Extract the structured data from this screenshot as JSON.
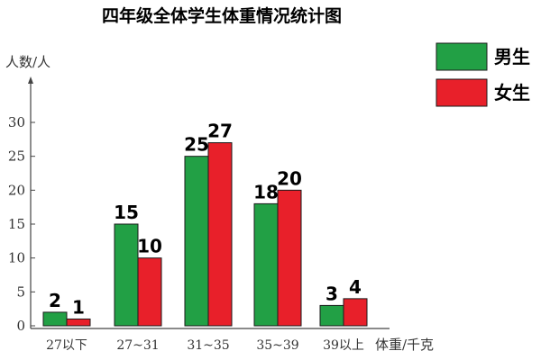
{
  "chart_data": {
    "type": "bar",
    "title": "四年级全体学生体重情况统计图",
    "ylabel": "人数/人",
    "xlabel": "体重/千克",
    "categories": [
      "27以下",
      "27~31",
      "31~35",
      "35~39",
      "39以上"
    ],
    "series": [
      {
        "name": "男生",
        "values": [
          2,
          15,
          25,
          18,
          3
        ],
        "color": "#22a045"
      },
      {
        "name": "女生",
        "values": [
          1,
          10,
          27,
          20,
          4
        ],
        "color": "#e8202a"
      }
    ],
    "data_labels": [
      [
        "2",
        "15",
        "25",
        "18",
        "3"
      ],
      [
        "1",
        "10",
        "27",
        "20",
        "4"
      ]
    ],
    "yticks": [
      "0",
      "5",
      "10",
      "15",
      "20",
      "25",
      "30"
    ],
    "ytick_values": [
      0,
      5,
      10,
      15,
      20,
      25,
      30
    ],
    "ylim": [
      0,
      30
    ],
    "legend_position": "top-right",
    "grid": false
  }
}
